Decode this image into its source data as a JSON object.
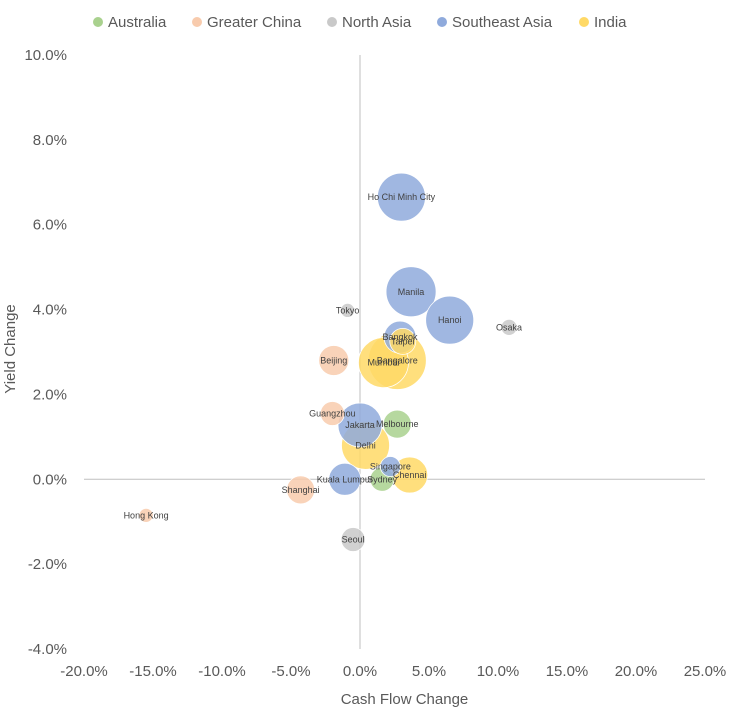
{
  "chart_data": {
    "type": "scatter",
    "subtype": "bubble",
    "title": "",
    "xlabel": "Cash Flow Change",
    "ylabel": "Yield Change",
    "xlim": [
      -0.2,
      0.25
    ],
    "ylim": [
      -0.04,
      0.1
    ],
    "x_ticks": [
      "-20.0%",
      "-15.0%",
      "-10.0%",
      "-5.0%",
      "0.0%",
      "5.0%",
      "10.0%",
      "15.0%",
      "20.0%",
      "25.0%"
    ],
    "y_ticks": [
      "10.0%",
      "8.0%",
      "6.0%",
      "4.0%",
      "2.0%",
      "0.0%",
      "-2.0%",
      "-4.0%"
    ],
    "grid": false,
    "legend_position": "top",
    "series": [
      {
        "name": "Australia",
        "color": "#A9D18E",
        "points": [
          {
            "label": "Melbourne",
            "x": 0.027,
            "y": 0.013,
            "size": 14
          },
          {
            "label": "Sydney",
            "x": 0.016,
            "y": 0.0,
            "size": 12
          }
        ]
      },
      {
        "name": "Greater China",
        "color": "#F8CBAD",
        "points": [
          {
            "label": "Beijing",
            "x": -0.019,
            "y": 0.028,
            "size": 15
          },
          {
            "label": "Guangzhou",
            "x": -0.02,
            "y": 0.0155,
            "size": 12
          },
          {
            "label": "Shanghai",
            "x": -0.043,
            "y": -0.0025,
            "size": 14
          },
          {
            "label": "Hong Kong",
            "x": -0.155,
            "y": -0.0085,
            "size": 7
          }
        ]
      },
      {
        "name": "North Asia",
        "color": "#C9C9C9",
        "points": [
          {
            "label": "Tokyo",
            "x": -0.009,
            "y": 0.0398,
            "size": 7
          },
          {
            "label": "Osaka",
            "x": 0.108,
            "y": 0.0358,
            "size": 8
          },
          {
            "label": "Seoul",
            "x": -0.005,
            "y": -0.0142,
            "size": 12
          }
        ]
      },
      {
        "name": "Southeast Asia",
        "color": "#8FAADC",
        "points": [
          {
            "label": "Ho Chi Minh City",
            "x": 0.03,
            "y": 0.0665,
            "size": 24
          },
          {
            "label": "Manila",
            "x": 0.037,
            "y": 0.0442,
            "size": 25
          },
          {
            "label": "Hanoi",
            "x": 0.065,
            "y": 0.0375,
            "size": 24
          },
          {
            "label": "Bangkok",
            "x": 0.029,
            "y": 0.0335,
            "size": 16
          },
          {
            "label": "Jakarta",
            "x": 0.0,
            "y": 0.0128,
            "size": 22
          },
          {
            "label": "Kuala Lumpur",
            "x": -0.011,
            "y": 0.0,
            "size": 16
          },
          {
            "label": "Singapore",
            "x": 0.022,
            "y": 0.003,
            "size": 10
          }
        ]
      },
      {
        "name": "India",
        "color": "#FFD966",
        "points": [
          {
            "label": "Taipei",
            "x": 0.031,
            "y": 0.0325,
            "size": 13
          },
          {
            "label": "Bangalore",
            "x": 0.027,
            "y": 0.028,
            "size": 29
          },
          {
            "label": "Mumbai",
            "x": 0.017,
            "y": 0.0275,
            "size": 25
          },
          {
            "label": "Delhi",
            "x": 0.004,
            "y": 0.008,
            "size": 24
          },
          {
            "label": "Chennai",
            "x": 0.036,
            "y": 0.001,
            "size": 18
          }
        ]
      }
    ]
  }
}
